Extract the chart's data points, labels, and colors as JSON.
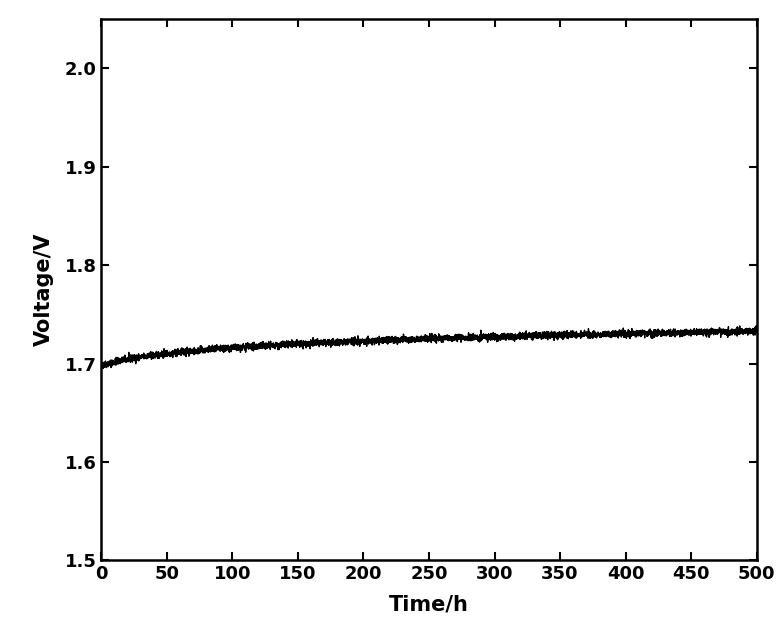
{
  "title": "",
  "xlabel": "Time/h",
  "ylabel": "Voltage/V",
  "xlim": [
    0,
    500
  ],
  "ylim": [
    1.5,
    2.05
  ],
  "xticks": [
    0,
    50,
    100,
    150,
    200,
    250,
    300,
    350,
    400,
    450,
    500
  ],
  "yticks": [
    1.5,
    1.6,
    1.7,
    1.8,
    1.9,
    2.0
  ],
  "line_color": "#000000",
  "background_color": "#ffffff",
  "x_start": 0,
  "x_end": 500,
  "n_points": 5000,
  "v_start": 1.698,
  "v_end": 1.733,
  "noise_amplitude": 0.0018,
  "xlabel_fontsize": 15,
  "ylabel_fontsize": 15,
  "tick_fontsize": 13,
  "tick_fontweight": "bold",
  "label_fontweight": "bold",
  "linewidth": 1.0
}
